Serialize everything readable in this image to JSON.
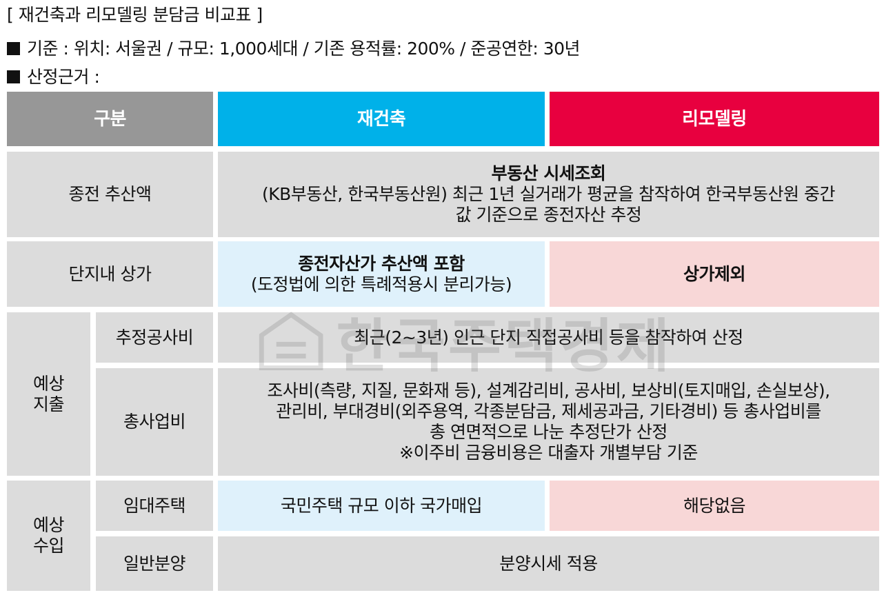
{
  "header": {
    "title": "[ 재건축과 리모델링 분담금 비교표 ]",
    "criteria": "기준 : 위치: 서울권 / 규모: 1,000세대 / 기존 용적률: 200% / 준공연한: 30년",
    "basis": "산정근거 :"
  },
  "table": {
    "headers": {
      "category": "구분",
      "reconstruction": "재건축",
      "remodeling": "리모델링"
    },
    "rows": {
      "prior_value": {
        "label": "종전 추산액",
        "title": "부동산 시세조회",
        "line1": "(KB부동산, 한국부동산원) 최근 1년 실거래가 평균을 참작하여 한국부동산원 중간",
        "line2": "값 기준으로 종전자산 추정"
      },
      "complex_shops": {
        "label": "단지내 상가",
        "reconstruction_title": "종전자산가 추산액 포함",
        "reconstruction_note": "(도정법에 의한 특례적용시 분리가능)",
        "remodeling": "상가제외"
      },
      "expected_expense": {
        "group_line1": "예상",
        "group_line2": "지출",
        "construction": {
          "label": "추정공사비",
          "text": "최근(2~3년) 인근 단지 직접공사비 등을 참작하여 산정"
        },
        "total_project": {
          "label": "총사업비",
          "line1": "조사비(측량, 지질, 문화재 등), 설계감리비, 공사비, 보상비(토지매입, 손실보상),",
          "line2": "관리비, 부대경비(외주용역, 각종분담금, 제세공과금, 기타경비) 등 총사업비를",
          "line3": "총 연면적으로 나눈 추정단가 산정",
          "line4": "※이주비 금융비용은 대출자 개별부담 기준"
        }
      },
      "expected_income": {
        "group_line1": "예상",
        "group_line2": "수입",
        "rental": {
          "label": "임대주택",
          "reconstruction": "국민주택 규모 이하 국가매입",
          "remodeling": "해당없음"
        },
        "general_sale": {
          "label": "일반분양",
          "text": "분양시세 적용"
        }
      }
    }
  },
  "watermark": {
    "text": "한국주택경제"
  },
  "colors": {
    "header_gray": "#979797",
    "header_blue": "#00b1e9",
    "header_red": "#e8003f",
    "cell_gray": "#dcdcdc",
    "light_blue": "#dff1fb",
    "light_pink": "#f8d7d7"
  }
}
